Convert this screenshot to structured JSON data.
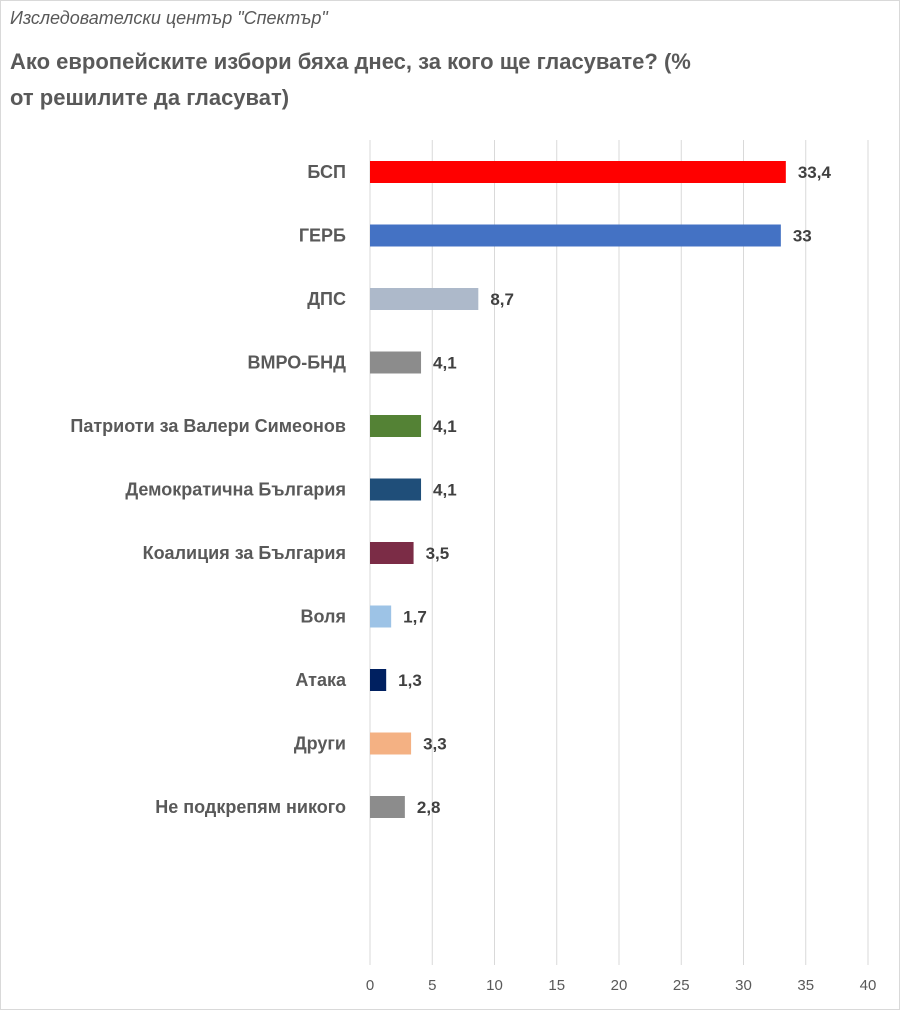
{
  "source": "Изследователски център \"Спектър\"",
  "chart_data": {
    "type": "bar",
    "orientation": "horizontal",
    "title": "Ако европейските избори бяха днес, за кого ще гласувате? (% от решилите да гласуват)",
    "xlabel": "",
    "ylabel": "",
    "xlim": [
      0,
      40
    ],
    "x_ticks": [
      "0",
      "5",
      "10",
      "15",
      "20",
      "25",
      "30",
      "35",
      "40"
    ],
    "grid": true,
    "legend": "none",
    "categories": [
      "БСП",
      "ГЕРБ",
      "ДПС",
      "ВМРО-БНД",
      "Патриоти за Валери Симеонов",
      "Демократична България",
      "Коалиция за България",
      "Воля",
      "Атака",
      "Други",
      "Не подкрепям никого"
    ],
    "values": [
      33.4,
      33,
      8.7,
      4.1,
      4.1,
      4.1,
      3.5,
      1.7,
      1.3,
      3.3,
      2.8
    ],
    "value_labels": [
      "33,4",
      "33",
      "8,7",
      "4,1",
      "4,1",
      "4,1",
      "3,5",
      "1,7",
      "1,3",
      "3,3",
      "2,8"
    ],
    "colors": [
      "#ff0000",
      "#4472c4",
      "#adb9ca",
      "#8c8c8c",
      "#548235",
      "#1f4e79",
      "#7b2c46",
      "#9dc3e6",
      "#002060",
      "#f4b183",
      "#8c8c8c"
    ]
  }
}
